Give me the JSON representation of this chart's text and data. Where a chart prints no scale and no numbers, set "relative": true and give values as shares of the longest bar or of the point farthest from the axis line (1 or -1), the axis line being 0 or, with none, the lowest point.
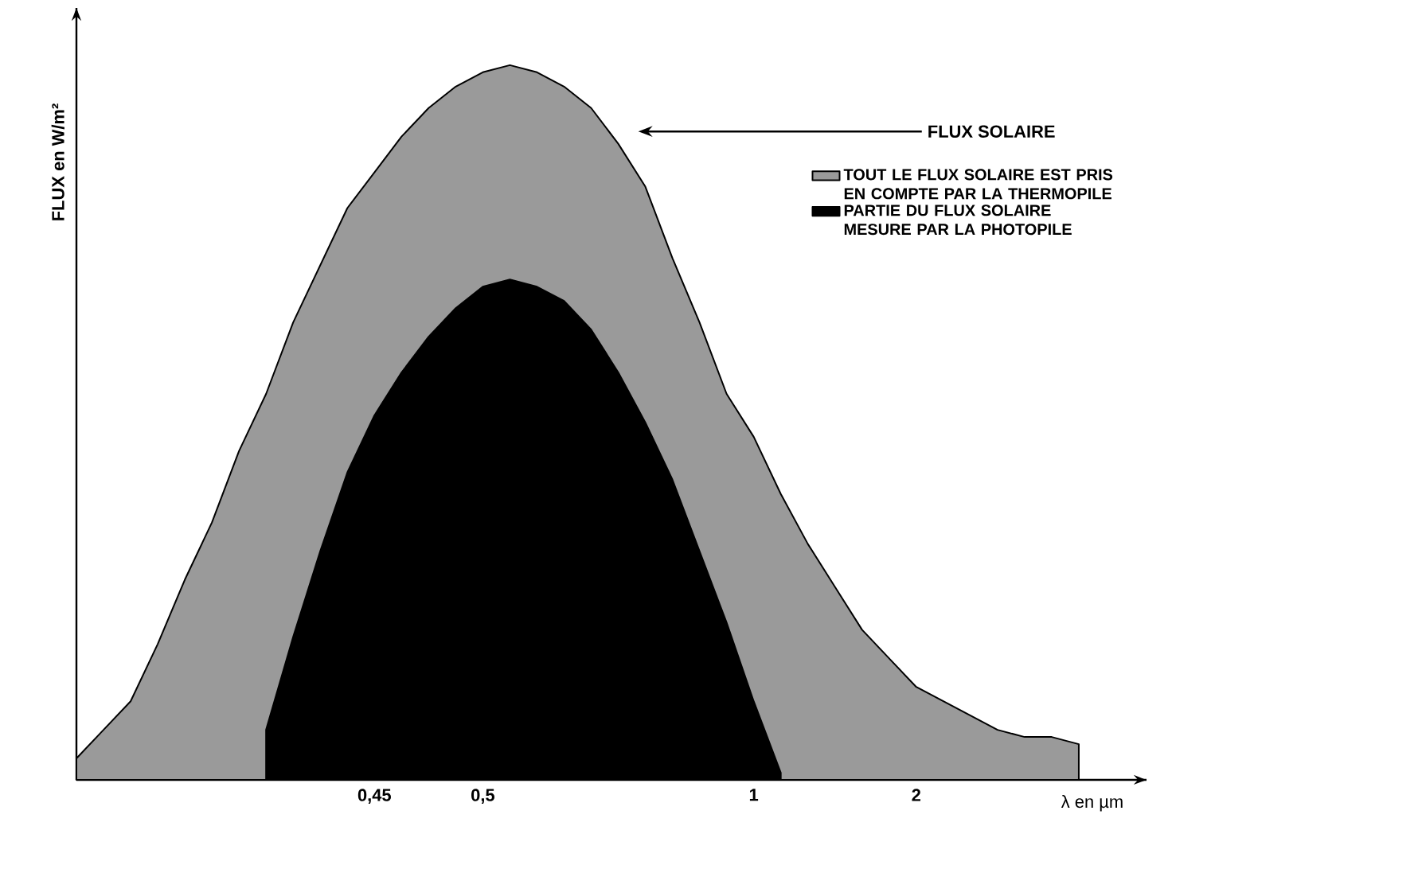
{
  "chart_data": {
    "type": "area",
    "relative": true,
    "xlabel": "λ en µm",
    "ylabel": "FLUX en W/m²",
    "categories": [
      null,
      null,
      null,
      null,
      null,
      null,
      null,
      null,
      null,
      null,
      null,
      "0,45",
      null,
      null,
      null,
      "0,5",
      null,
      null,
      null,
      null,
      null,
      null,
      null,
      null,
      null,
      "1",
      null,
      null,
      null,
      null,
      null,
      "2",
      null,
      null,
      null,
      null,
      null,
      null
    ],
    "series": [
      {
        "name": "TOUT LE FLUX SOLAIRE EST PRIS EN COMPTE PAR LA THERMOPILE",
        "color": "#9a9a9a",
        "values": [
          0.03,
          0.07,
          0.11,
          0.19,
          0.28,
          0.36,
          0.46,
          0.54,
          0.64,
          0.72,
          0.8,
          0.85,
          0.9,
          0.94,
          0.97,
          0.99,
          1.0,
          0.99,
          0.97,
          0.94,
          0.89,
          0.83,
          0.73,
          0.64,
          0.54,
          0.48,
          0.4,
          0.33,
          0.27,
          0.21,
          0.17,
          0.13,
          0.11,
          0.09,
          0.07,
          0.06,
          0.06,
          0.05
        ]
      },
      {
        "name": "PARTIE DU FLUX SOLAIRE MESURE PAR LA PHOTOPILE",
        "color": "#000000",
        "values": [
          null,
          null,
          null,
          null,
          null,
          null,
          null,
          0.07,
          0.2,
          0.32,
          0.43,
          0.51,
          0.57,
          0.62,
          0.66,
          0.69,
          0.7,
          0.69,
          0.67,
          0.63,
          0.57,
          0.5,
          0.42,
          0.32,
          0.22,
          0.11,
          0.01,
          null,
          null,
          null,
          null,
          null,
          null,
          null,
          null,
          null,
          null,
          null
        ]
      }
    ],
    "annotations": [
      "FLUX SOLAIRE"
    ],
    "legend": "right"
  }
}
